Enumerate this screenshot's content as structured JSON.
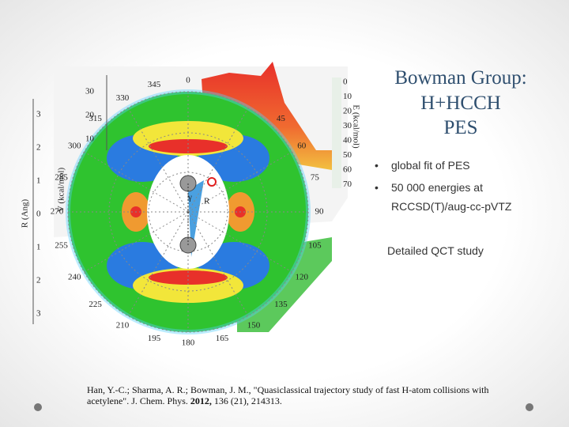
{
  "slide": {
    "title_lines": [
      "Bowman Group:",
      "H+HCCH",
      "PES"
    ],
    "bullets": [
      "global fit of PES",
      "50 000 energies at",
      "RCCSD(T)/aug-cc-pVTZ"
    ],
    "bullet_marker": "•",
    "note": "Detailed QCT study",
    "citation": {
      "line1": "Han, Y.-C.; Sharma, A. R.; Bowman, J. M., \"Quasiclassical trajectory study of fast H-atom collisions with",
      "line2_start": "acetylene\". J. Chem. Phys. ",
      "line2_bold": "2012,",
      "line2_end": " 136 (21), 214313."
    },
    "figure": {
      "angle_labels": [
        "0",
        "45",
        "60",
        "75",
        "90",
        "105",
        "120",
        "135",
        "150",
        "165",
        "180",
        "195",
        "210",
        "225",
        "240",
        "255",
        "270",
        "285",
        "300",
        "315",
        "330",
        "345"
      ],
      "r_axis_label": "R (Ang)",
      "r_ticks": [
        "3",
        "2",
        "1",
        "0",
        "1",
        "2",
        "3"
      ],
      "v_axis_label": "V (kcal/mol)",
      "v_ticks": [
        "30",
        "20",
        "10"
      ],
      "e_axis_label": "E (kcal/mol)",
      "colorbar_labels": [
        "0",
        "10",
        "20",
        "30",
        "40",
        "50",
        "60",
        "70"
      ],
      "inner_labels": [
        "γ",
        "R"
      ]
    }
  }
}
